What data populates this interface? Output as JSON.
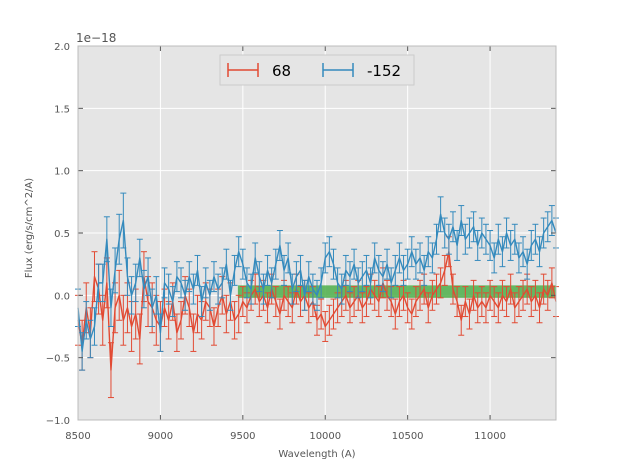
{
  "chart_data": {
    "type": "line",
    "title": "",
    "xlabel": "Wavelength (A)",
    "ylabel": "Flux (erg/s/cm^2/A)",
    "offset_label": "1e−18",
    "xlim": [
      8500,
      11400
    ],
    "ylim": [
      -1.0,
      2.0
    ],
    "xticks": [
      8500,
      9000,
      9500,
      10000,
      10500,
      11000
    ],
    "xtick_labels": [
      "8500",
      "9000",
      "9500",
      "10000",
      "10500",
      "11000"
    ],
    "yticks": [
      -1.0,
      -0.5,
      0.0,
      0.5,
      1.0,
      1.5,
      2.0
    ],
    "ytick_labels": [
      "−1.0",
      "−0.5",
      "0.0",
      "0.5",
      "1.0",
      "1.5",
      "2.0"
    ],
    "grid": true,
    "legend_position": "top-center",
    "band": {
      "x_range": [
        9470,
        11400
      ],
      "y_range": [
        -0.02,
        0.08
      ],
      "color": "#4daf4a"
    },
    "series": [
      {
        "name": "68",
        "color": "#e24a33",
        "x": [
          8500,
          8525,
          8550,
          8575,
          8600,
          8625,
          8650,
          8675,
          8700,
          8725,
          8750,
          8775,
          8800,
          8825,
          8850,
          8875,
          8900,
          8925,
          8950,
          8975,
          9000,
          9025,
          9050,
          9075,
          9100,
          9125,
          9150,
          9175,
          9200,
          9225,
          9250,
          9275,
          9300,
          9325,
          9350,
          9375,
          9400,
          9425,
          9450,
          9475,
          9500,
          9525,
          9550,
          9575,
          9600,
          9625,
          9650,
          9675,
          9700,
          9725,
          9750,
          9775,
          9800,
          9825,
          9850,
          9875,
          9900,
          9925,
          9950,
          9975,
          10000,
          10025,
          10050,
          10075,
          10100,
          10125,
          10150,
          10175,
          10200,
          10225,
          10250,
          10275,
          10300,
          10325,
          10350,
          10375,
          10400,
          10425,
          10450,
          10475,
          10500,
          10525,
          10550,
          10575,
          10600,
          10625,
          10650,
          10675,
          10700,
          10725,
          10750,
          10775,
          10800,
          10825,
          10850,
          10875,
          10900,
          10925,
          10950,
          10975,
          11000,
          11025,
          11050,
          11075,
          11100,
          11125,
          11150,
          11175,
          11200,
          11225,
          11250,
          11275,
          11300,
          11325,
          11350,
          11375,
          11400
        ],
        "values": [
          -0.2,
          -0.4,
          -0.1,
          -0.3,
          0.15,
          0.05,
          -0.2,
          0.1,
          -0.6,
          -0.1,
          0.0,
          -0.2,
          -0.1,
          -0.25,
          -0.15,
          -0.35,
          0.15,
          -0.05,
          -0.1,
          -0.2,
          -0.25,
          -0.1,
          -0.2,
          -0.05,
          -0.3,
          -0.2,
          0.0,
          -0.1,
          -0.3,
          -0.15,
          -0.2,
          -0.05,
          -0.1,
          -0.25,
          -0.1,
          0.0,
          -0.15,
          -0.05,
          -0.2,
          -0.15,
          -0.05,
          -0.1,
          0.0,
          0.05,
          -0.05,
          0.0,
          -0.1,
          0.05,
          -0.05,
          -0.15,
          0.0,
          -0.05,
          -0.1,
          0.05,
          -0.05,
          0.0,
          -0.1,
          -0.05,
          -0.2,
          -0.15,
          -0.25,
          -0.2,
          -0.15,
          -0.1,
          -0.05,
          0.0,
          -0.1,
          -0.05,
          0.0,
          -0.1,
          -0.05,
          0.05,
          0.0,
          -0.05,
          0.1,
          0.0,
          -0.05,
          -0.15,
          -0.05,
          0.0,
          -0.1,
          -0.15,
          -0.05,
          0.0,
          0.05,
          -0.1,
          0.0,
          0.05,
          0.1,
          0.2,
          0.35,
          0.05,
          -0.05,
          -0.2,
          -0.05,
          -0.15,
          0.0,
          -0.1,
          -0.05,
          -0.1,
          0.0,
          -0.05,
          -0.1,
          0.0,
          -0.05,
          0.05,
          -0.1,
          -0.05,
          0.0,
          0.05,
          -0.05,
          0.0,
          -0.1,
          0.05,
          0.0,
          0.1,
          -0.05
        ],
        "errors": [
          0.2,
          0.2,
          0.2,
          0.2,
          0.2,
          0.2,
          0.2,
          0.2,
          0.22,
          0.2,
          0.2,
          0.2,
          0.2,
          0.2,
          0.2,
          0.2,
          0.2,
          0.2,
          0.2,
          0.2,
          0.2,
          0.15,
          0.15,
          0.15,
          0.15,
          0.15,
          0.15,
          0.15,
          0.15,
          0.15,
          0.15,
          0.15,
          0.15,
          0.15,
          0.15,
          0.15,
          0.15,
          0.15,
          0.15,
          0.15,
          0.12,
          0.12,
          0.12,
          0.12,
          0.12,
          0.12,
          0.12,
          0.12,
          0.12,
          0.12,
          0.12,
          0.12,
          0.12,
          0.12,
          0.12,
          0.12,
          0.12,
          0.12,
          0.12,
          0.12,
          0.12,
          0.12,
          0.12,
          0.12,
          0.12,
          0.12,
          0.12,
          0.12,
          0.12,
          0.12,
          0.12,
          0.12,
          0.12,
          0.12,
          0.12,
          0.12,
          0.12,
          0.12,
          0.12,
          0.12,
          0.12,
          0.12,
          0.12,
          0.12,
          0.12,
          0.12,
          0.12,
          0.12,
          0.12,
          0.12,
          0.12,
          0.12,
          0.12,
          0.12,
          0.12,
          0.12,
          0.12,
          0.12,
          0.12,
          0.12,
          0.12,
          0.12,
          0.12,
          0.12,
          0.12,
          0.12,
          0.12,
          0.12,
          0.12,
          0.12,
          0.12,
          0.12,
          0.12,
          0.12,
          0.12,
          0.12,
          0.12
        ]
      },
      {
        "name": "-152",
        "color": "#348abd",
        "x": [
          8500,
          8525,
          8550,
          8575,
          8600,
          8625,
          8650,
          8675,
          8700,
          8725,
          8750,
          8775,
          8800,
          8825,
          8850,
          8875,
          8900,
          8925,
          8950,
          8975,
          9000,
          9025,
          9050,
          9075,
          9100,
          9125,
          9150,
          9175,
          9200,
          9225,
          9250,
          9275,
          9300,
          9325,
          9350,
          9375,
          9400,
          9425,
          9450,
          9475,
          9500,
          9525,
          9550,
          9575,
          9600,
          9625,
          9650,
          9675,
          9700,
          9725,
          9750,
          9775,
          9800,
          9825,
          9850,
          9875,
          9900,
          9925,
          9950,
          9975,
          10000,
          10025,
          10050,
          10075,
          10100,
          10125,
          10150,
          10175,
          10200,
          10225,
          10250,
          10275,
          10300,
          10325,
          10350,
          10375,
          10400,
          10425,
          10450,
          10475,
          10500,
          10525,
          10550,
          10575,
          10600,
          10625,
          10650,
          10675,
          10700,
          10725,
          10750,
          10775,
          10800,
          10825,
          10850,
          10875,
          10900,
          10925,
          10950,
          10975,
          11000,
          11025,
          11050,
          11075,
          11100,
          11125,
          11150,
          11175,
          11200,
          11225,
          11250,
          11275,
          11300,
          11325,
          11350,
          11375,
          11400
        ],
        "values": [
          -0.1,
          -0.45,
          -0.2,
          -0.35,
          -0.25,
          0.1,
          0.1,
          0.45,
          -0.1,
          0.2,
          0.45,
          0.6,
          0.15,
          0.0,
          0.1,
          0.3,
          0.05,
          0.15,
          -0.1,
          0.0,
          -0.3,
          0.1,
          0.05,
          -0.05,
          0.15,
          0.1,
          0.0,
          0.15,
          0.05,
          0.2,
          -0.05,
          0.1,
          0.0,
          0.15,
          0.05,
          0.1,
          0.25,
          0.0,
          0.2,
          0.35,
          0.25,
          0.1,
          0.05,
          0.3,
          0.15,
          0.05,
          0.2,
          0.1,
          0.25,
          0.4,
          0.2,
          0.3,
          0.05,
          0.15,
          0.2,
          0.0,
          0.15,
          0.05,
          0.0,
          0.1,
          0.3,
          0.35,
          0.25,
          0.1,
          0.05,
          0.2,
          0.15,
          0.25,
          0.1,
          0.15,
          0.2,
          0.1,
          0.3,
          0.2,
          0.15,
          0.25,
          0.1,
          0.2,
          0.3,
          0.2,
          0.25,
          0.35,
          0.25,
          0.3,
          0.2,
          0.35,
          0.3,
          0.45,
          0.65,
          0.5,
          0.45,
          0.55,
          0.4,
          0.6,
          0.45,
          0.5,
          0.55,
          0.4,
          0.5,
          0.45,
          0.4,
          0.3,
          0.45,
          0.35,
          0.5,
          0.4,
          0.45,
          0.3,
          0.35,
          0.25,
          0.4,
          0.45,
          0.35,
          0.5,
          0.55,
          0.6,
          0.5
        ],
        "errors": [
          0.15,
          0.15,
          0.15,
          0.15,
          0.15,
          0.15,
          0.15,
          0.18,
          0.15,
          0.18,
          0.2,
          0.22,
          0.15,
          0.15,
          0.15,
          0.15,
          0.15,
          0.15,
          0.15,
          0.15,
          0.15,
          0.12,
          0.12,
          0.12,
          0.12,
          0.12,
          0.12,
          0.12,
          0.12,
          0.12,
          0.12,
          0.12,
          0.12,
          0.12,
          0.12,
          0.12,
          0.12,
          0.12,
          0.12,
          0.12,
          0.12,
          0.12,
          0.12,
          0.12,
          0.12,
          0.12,
          0.12,
          0.12,
          0.12,
          0.12,
          0.12,
          0.12,
          0.12,
          0.12,
          0.12,
          0.12,
          0.12,
          0.12,
          0.12,
          0.12,
          0.12,
          0.12,
          0.12,
          0.12,
          0.12,
          0.12,
          0.12,
          0.12,
          0.12,
          0.12,
          0.12,
          0.12,
          0.12,
          0.12,
          0.12,
          0.12,
          0.12,
          0.12,
          0.12,
          0.12,
          0.12,
          0.12,
          0.12,
          0.12,
          0.12,
          0.12,
          0.12,
          0.12,
          0.14,
          0.12,
          0.12,
          0.12,
          0.12,
          0.12,
          0.12,
          0.12,
          0.12,
          0.12,
          0.12,
          0.12,
          0.12,
          0.12,
          0.12,
          0.12,
          0.12,
          0.12,
          0.12,
          0.12,
          0.12,
          0.12,
          0.12,
          0.12,
          0.12,
          0.12,
          0.12,
          0.12,
          0.12
        ]
      }
    ]
  }
}
